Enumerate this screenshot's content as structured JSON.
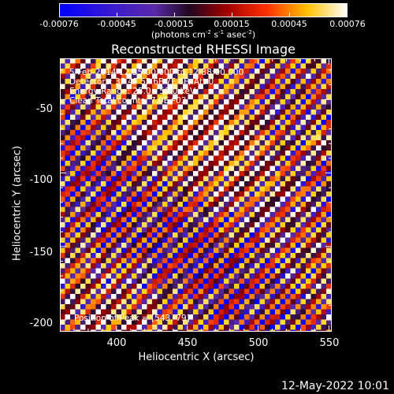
{
  "chart_data": {
    "type": "heatmap",
    "title": "Reconstructed RHESSI Image",
    "xlabel": "Heliocentric X (arcsec)",
    "ylabel": "Heliocentric Y (arcsec)",
    "xlim": [
      360,
      552
    ],
    "ylim": [
      -208,
      -22
    ],
    "xticks": [
      "400",
      "450",
      "500",
      "550"
    ],
    "yticks": [
      "-50",
      "-100",
      "-150",
      "-200"
    ],
    "colorbar": {
      "range": [
        -0.00076,
        0.00076
      ],
      "ticks": [
        "-0.00076",
        "-0.00045",
        "-0.00015",
        "0.00015",
        "0.00045",
        "0.00076"
      ],
      "unit_label": "(photons cm-2 s-1 asec-2)",
      "colormap": [
        "#0000ff",
        "#5a2aa8",
        "#2a0a2a",
        "#a00000",
        "#ff4000",
        "#ffd000",
        "#ffffff"
      ]
    },
    "annotations": [
      "5-Feb-2014 12:35:00.000 to 12:38:00.000",
      "Detectors: 3F 4F 5F 6F 7F 8F; Att 0",
      "Energy Range: 25.0 - 50.0 keV",
      "Clean     Total counts: 7.0E+03"
    ],
    "peak_label": "Position of Peak = [543,-79]",
    "peak": [
      543,
      -79
    ],
    "pattern": "diagonal stripes from lower-left to upper-right"
  },
  "footer": {
    "timestamp": "12-May-2022 10:01"
  }
}
